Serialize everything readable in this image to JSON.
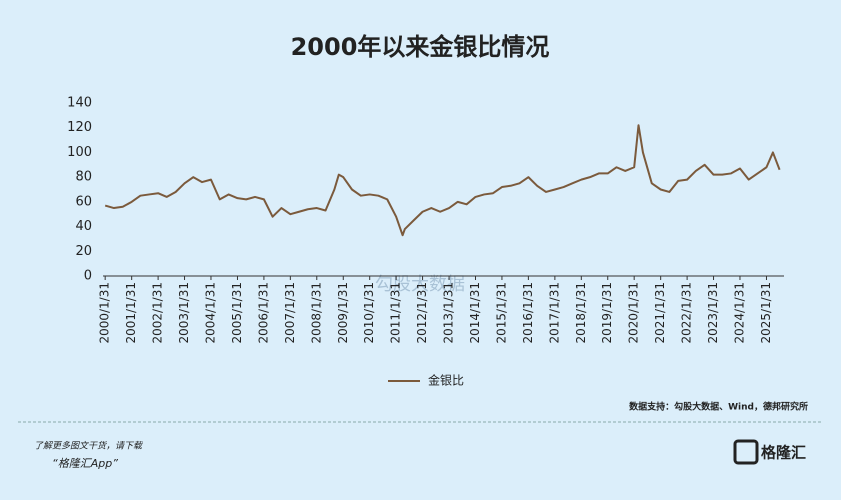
{
  "header": {
    "title": "2000年以来金银比情况"
  },
  "chart_data": {
    "type": "line",
    "x": [
      "2000/1/31",
      "2000/5/31",
      "2000/9/30",
      "2001/1/31",
      "2001/5/31",
      "2001/9/30",
      "2002/1/31",
      "2002/5/31",
      "2002/9/30",
      "2003/1/31",
      "2003/5/31",
      "2003/9/30",
      "2004/1/31",
      "2004/5/31",
      "2004/9/30",
      "2005/1/31",
      "2005/5/31",
      "2005/9/30",
      "2006/1/31",
      "2006/5/31",
      "2006/9/30",
      "2007/1/31",
      "2007/5/31",
      "2007/9/30",
      "2008/1/31",
      "2008/5/31",
      "2008/9/30",
      "2008/11/30",
      "2009/1/31",
      "2009/5/31",
      "2009/9/30",
      "2010/1/31",
      "2010/5/31",
      "2010/9/30",
      "2011/1/31",
      "2011/4/30",
      "2011/5/31",
      "2011/9/30",
      "2012/1/31",
      "2012/5/31",
      "2012/9/30",
      "2013/1/31",
      "2013/5/31",
      "2013/9/30",
      "2014/1/31",
      "2014/5/31",
      "2014/9/30",
      "2015/1/31",
      "2015/5/31",
      "2015/9/30",
      "2016/1/31",
      "2016/5/31",
      "2016/9/30",
      "2017/1/31",
      "2017/5/31",
      "2017/9/30",
      "2018/1/31",
      "2018/5/31",
      "2018/9/30",
      "2019/1/31",
      "2019/5/31",
      "2019/9/30",
      "2020/1/31",
      "2020/3/31",
      "2020/5/31",
      "2020/9/30",
      "2021/1/31",
      "2021/5/31",
      "2021/9/30",
      "2022/1/31",
      "2022/5/31",
      "2022/9/30",
      "2023/1/31",
      "2023/5/31",
      "2023/9/30",
      "2024/1/31",
      "2024/5/31",
      "2024/9/30",
      "2025/1/31",
      "2025/4/30",
      "2025/7/31"
    ],
    "series": [
      {
        "name": "金银比",
        "color": "#7b5a3c",
        "values": [
          57,
          55,
          56,
          60,
          65,
          66,
          67,
          64,
          68,
          75,
          80,
          76,
          78,
          62,
          66,
          63,
          62,
          64,
          62,
          48,
          55,
          50,
          52,
          54,
          55,
          53,
          70,
          82,
          80,
          70,
          65,
          66,
          65,
          62,
          48,
          33,
          38,
          45,
          52,
          55,
          52,
          55,
          60,
          58,
          64,
          66,
          67,
          72,
          73,
          75,
          80,
          73,
          68,
          70,
          72,
          75,
          78,
          80,
          83,
          83,
          88,
          85,
          88,
          122,
          100,
          75,
          70,
          68,
          77,
          78,
          85,
          90,
          82,
          82,
          83,
          87,
          78,
          83,
          88,
          100,
          86
        ]
      }
    ],
    "xlim": [
      "2000/1/1",
      "2025/9/30"
    ],
    "xticks": [
      "2000/1/31",
      "2001/1/31",
      "2002/1/31",
      "2003/1/31",
      "2004/1/31",
      "2005/1/31",
      "2006/1/31",
      "2007/1/31",
      "2008/1/31",
      "2009/1/31",
      "2010/1/31",
      "2011/1/31",
      "2012/1/31",
      "2013/1/31",
      "2014/1/31",
      "2015/1/31",
      "2016/1/31",
      "2017/1/31",
      "2018/1/31",
      "2019/1/31",
      "2020/1/31",
      "2021/1/31",
      "2022/1/31",
      "2023/1/31",
      "2024/1/31",
      "2025/1/31"
    ],
    "ylim": [
      0,
      140
    ],
    "yticks": [
      0,
      20,
      40,
      60,
      80,
      100,
      120,
      140
    ],
    "grid": false,
    "legend": "bottom"
  },
  "watermark": "勾股大数据",
  "source": "数据支持：勾股大数据、Wind，德邦研究所",
  "footer": {
    "line1": "了解更多图文干货，请下载",
    "line2": "“格隆汇App”",
    "logo": "格隆汇"
  }
}
